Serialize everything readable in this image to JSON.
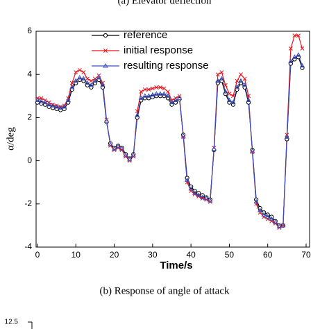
{
  "captions": {
    "top": "(a) Elevator deflection",
    "bottom": "(b) Response of angle of attack"
  },
  "next_chart": {
    "ytick": 12.5
  },
  "chart_data": {
    "type": "line",
    "xlabel": "Time/s",
    "ylabel": "α/deg",
    "x": [
      0,
      1,
      2,
      3,
      4,
      5,
      6,
      7,
      8,
      9,
      10,
      11,
      12,
      13,
      14,
      15,
      16,
      17,
      18,
      19,
      20,
      21,
      22,
      23,
      24,
      25,
      26,
      27,
      28,
      29,
      30,
      31,
      32,
      33,
      34,
      35,
      36,
      37,
      38,
      39,
      40,
      41,
      42,
      43,
      44,
      45,
      46,
      47,
      48,
      49,
      50,
      51,
      52,
      53,
      54,
      55,
      56,
      57,
      58,
      59,
      60,
      61,
      62,
      63,
      64,
      65,
      66,
      67,
      68,
      69
    ],
    "xlim": [
      0,
      70
    ],
    "xticks": [
      0,
      10,
      20,
      30,
      40,
      50,
      60,
      70
    ],
    "ylim": [
      -4,
      6
    ],
    "yticks": [
      -4,
      -2,
      0,
      2,
      4,
      6
    ],
    "legend": "upper left",
    "series": [
      {
        "name": "reference",
        "color": "#000000",
        "marker": "circle",
        "values": [
          2.7,
          2.65,
          2.6,
          2.5,
          2.45,
          2.4,
          2.35,
          2.4,
          2.7,
          3.3,
          3.6,
          3.75,
          3.7,
          3.5,
          3.4,
          3.6,
          3.75,
          3.4,
          1.8,
          0.8,
          0.6,
          0.7,
          0.6,
          0.3,
          0.1,
          0.3,
          2.0,
          2.8,
          2.9,
          2.9,
          2.95,
          3.0,
          3.0,
          3.0,
          2.9,
          2.6,
          2.7,
          2.85,
          1.2,
          -0.8,
          -1.2,
          -1.4,
          -1.5,
          -1.6,
          -1.7,
          -1.8,
          0.5,
          3.6,
          3.7,
          3.1,
          2.7,
          2.6,
          3.3,
          3.6,
          3.4,
          2.7,
          0.5,
          -1.8,
          -2.2,
          -2.4,
          -2.5,
          -2.6,
          -2.8,
          -3.0,
          -3.0,
          1.0,
          4.5,
          4.7,
          4.8,
          4.3
        ]
      },
      {
        "name": "initial response",
        "color": "#e8141c",
        "marker": "x",
        "values": [
          2.9,
          2.9,
          2.8,
          2.7,
          2.6,
          2.55,
          2.5,
          2.55,
          2.9,
          3.6,
          4.1,
          4.2,
          4.1,
          3.8,
          3.7,
          3.8,
          3.95,
          3.6,
          1.9,
          0.7,
          0.5,
          0.6,
          0.5,
          0.2,
          0.0,
          0.2,
          2.3,
          3.2,
          3.3,
          3.3,
          3.35,
          3.4,
          3.4,
          3.35,
          3.2,
          2.8,
          2.9,
          3.0,
          1.1,
          -1.0,
          -1.4,
          -1.55,
          -1.65,
          -1.75,
          -1.8,
          -1.9,
          0.6,
          4.0,
          4.1,
          3.5,
          3.1,
          3.0,
          3.7,
          4.0,
          3.8,
          3.0,
          0.4,
          -2.0,
          -2.4,
          -2.6,
          -2.7,
          -2.8,
          -2.9,
          -3.1,
          -3.0,
          1.2,
          5.2,
          5.8,
          5.8,
          5.2
        ]
      },
      {
        "name": "resulting response",
        "color": "#3a4fc4",
        "marker": "triangle",
        "values": [
          2.8,
          2.75,
          2.7,
          2.6,
          2.55,
          2.5,
          2.45,
          2.5,
          2.8,
          3.4,
          3.7,
          3.85,
          3.8,
          3.6,
          3.5,
          3.7,
          3.85,
          3.5,
          1.85,
          0.75,
          0.55,
          0.65,
          0.55,
          0.25,
          0.05,
          0.25,
          2.1,
          2.9,
          3.0,
          3.0,
          3.05,
          3.1,
          3.1,
          3.1,
          3.0,
          2.7,
          2.8,
          2.9,
          1.15,
          -0.9,
          -1.3,
          -1.5,
          -1.6,
          -1.7,
          -1.75,
          -1.85,
          0.55,
          3.7,
          3.8,
          3.2,
          2.8,
          2.7,
          3.4,
          3.7,
          3.5,
          2.8,
          0.45,
          -1.9,
          -2.3,
          -2.5,
          -2.6,
          -2.7,
          -2.85,
          -3.05,
          -3.0,
          1.1,
          4.6,
          4.8,
          4.9,
          4.4
        ]
      }
    ]
  }
}
